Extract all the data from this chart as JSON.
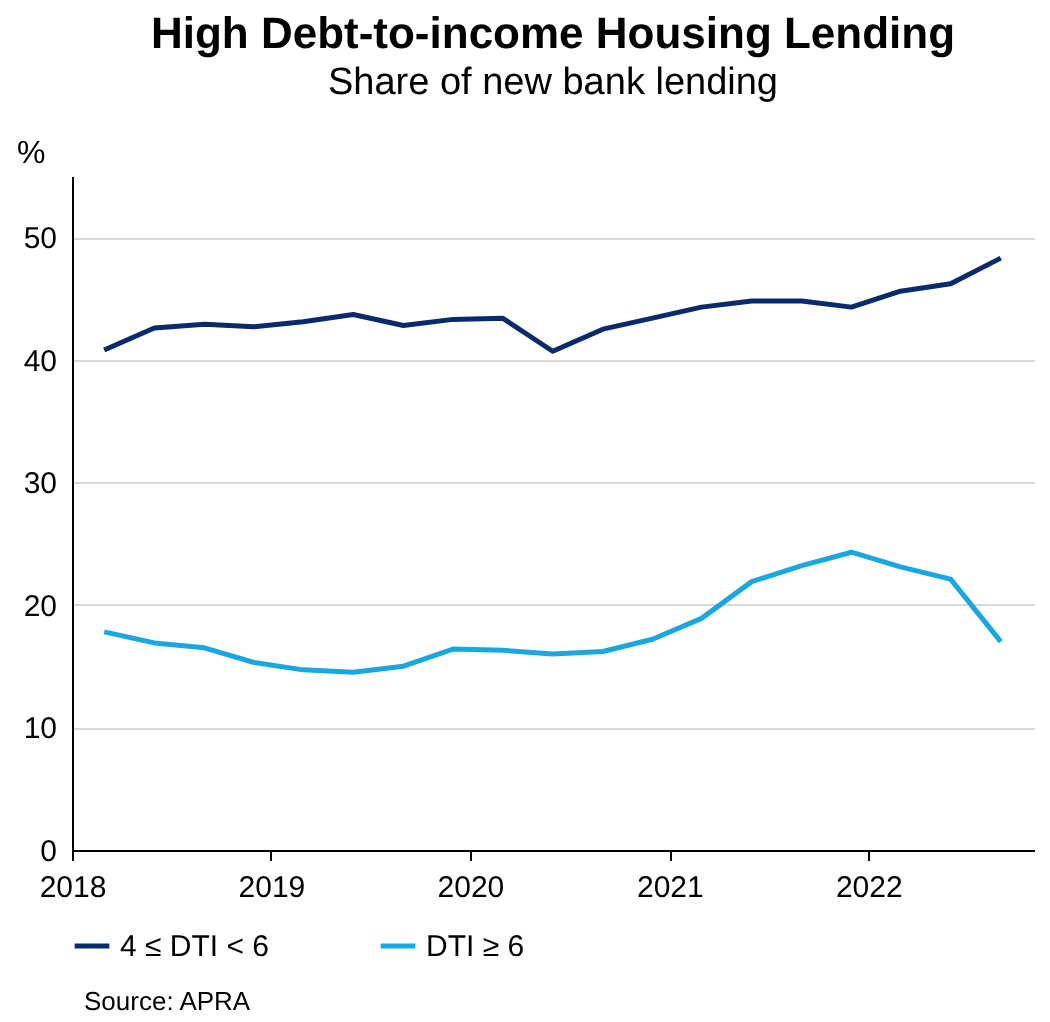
{
  "chart_data": {
    "type": "line",
    "title": "High Debt-to-income Housing Lending",
    "subtitle": "Share of new bank lending",
    "ylabel": "%",
    "x": [
      "2018-03",
      "2018-06",
      "2018-09",
      "2018-12",
      "2019-03",
      "2019-06",
      "2019-09",
      "2019-12",
      "2020-03",
      "2020-06",
      "2020-09",
      "2020-12",
      "2021-03",
      "2021-06",
      "2021-09",
      "2021-12",
      "2022-03",
      "2022-06",
      "2022-09"
    ],
    "series": [
      {
        "name": "4 ≤ DTI < 6",
        "color": "#0b2a6e",
        "values": [
          40.8,
          42.6,
          42.9,
          42.7,
          43.1,
          43.7,
          42.8,
          43.3,
          43.4,
          40.7,
          42.5,
          43.4,
          44.3,
          44.8,
          44.8,
          44.3,
          45.6,
          46.2,
          48.3
        ]
      },
      {
        "name": "DTI ≥ 6",
        "color": "#1aa7e1",
        "values": [
          17.8,
          16.9,
          16.5,
          15.3,
          14.7,
          14.5,
          15.0,
          16.4,
          16.3,
          16.0,
          16.2,
          17.2,
          18.9,
          21.9,
          23.2,
          24.3,
          23.1,
          22.1,
          17.0
        ]
      }
    ],
    "xlim": [
      "2018-01",
      "2022-11"
    ],
    "xticks": [
      "2018",
      "2019",
      "2020",
      "2021",
      "2022"
    ],
    "ylim": [
      0,
      55
    ],
    "yticks": [
      0,
      10,
      20,
      30,
      40,
      50
    ],
    "grid": "y",
    "legend": "bottom",
    "annotations": [
      "Source: APRA"
    ]
  }
}
